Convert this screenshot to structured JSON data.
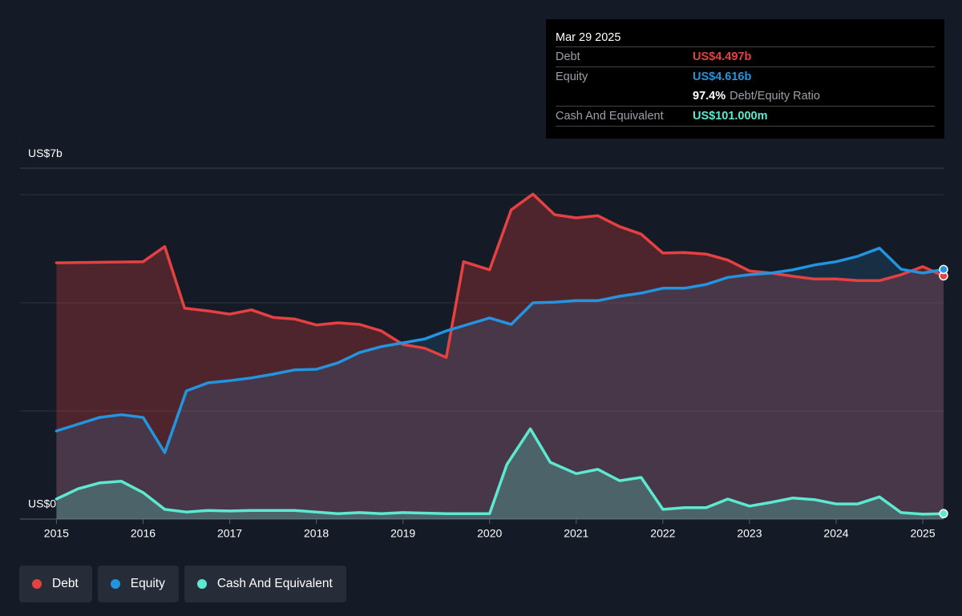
{
  "chart_data": {
    "type": "line",
    "xlim": [
      2014.58,
      2025.24
    ],
    "xticks": [
      2015,
      2016,
      2017,
      2018,
      2019,
      2020,
      2021,
      2022,
      2023,
      2024,
      2025
    ],
    "ylim": [
      0,
      7
    ],
    "yticks": [
      {
        "value": 0,
        "label": "US$0"
      },
      {
        "value": 7,
        "label": "US$7b"
      }
    ],
    "grid_lines": [
      2,
      4,
      6
    ],
    "series": [
      {
        "name": "Debt",
        "color": "#e64141",
        "x": [
          2015.0,
          2016.0,
          2016.25,
          2016.48,
          2016.75,
          2017.0,
          2017.25,
          2017.5,
          2017.75,
          2018.0,
          2018.25,
          2018.5,
          2018.75,
          2019.0,
          2019.25,
          2019.5,
          2019.7,
          2020.0,
          2020.25,
          2020.5,
          2020.75,
          2021.0,
          2021.25,
          2021.5,
          2021.75,
          2022.0,
          2022.25,
          2022.5,
          2022.75,
          2023.0,
          2023.25,
          2023.5,
          2023.75,
          2024.0,
          2024.25,
          2024.5,
          2024.75,
          2025.0,
          2025.24
        ],
        "values": [
          4.74,
          4.76,
          5.04,
          3.9,
          3.85,
          3.79,
          3.87,
          3.73,
          3.7,
          3.59,
          3.63,
          3.6,
          3.48,
          3.23,
          3.16,
          2.99,
          4.76,
          4.61,
          5.72,
          6.01,
          5.63,
          5.57,
          5.61,
          5.41,
          5.27,
          4.92,
          4.93,
          4.9,
          4.79,
          4.59,
          4.55,
          4.49,
          4.44,
          4.44,
          4.41,
          4.41,
          4.52,
          4.67,
          4.497
        ]
      },
      {
        "name": "Equity",
        "color": "#2394df",
        "x": [
          2015.0,
          2015.5,
          2015.75,
          2016.0,
          2016.25,
          2016.5,
          2016.75,
          2017.0,
          2017.25,
          2017.5,
          2017.75,
          2018.0,
          2018.25,
          2018.5,
          2018.75,
          2019.0,
          2019.25,
          2019.5,
          2019.75,
          2020.0,
          2020.25,
          2020.5,
          2020.75,
          2021.0,
          2021.25,
          2021.5,
          2021.75,
          2022.0,
          2022.25,
          2022.5,
          2022.75,
          2023.0,
          2023.25,
          2023.5,
          2023.75,
          2024.0,
          2024.25,
          2024.5,
          2024.75,
          2025.0,
          2025.24
        ],
        "values": [
          1.63,
          1.88,
          1.93,
          1.88,
          1.23,
          2.37,
          2.52,
          2.56,
          2.61,
          2.68,
          2.76,
          2.77,
          2.89,
          3.08,
          3.19,
          3.26,
          3.33,
          3.48,
          3.6,
          3.72,
          3.6,
          4.0,
          4.01,
          4.04,
          4.04,
          4.12,
          4.18,
          4.27,
          4.27,
          4.34,
          4.47,
          4.52,
          4.55,
          4.61,
          4.7,
          4.76,
          4.86,
          5.01,
          4.62,
          4.55,
          4.616
        ]
      },
      {
        "name": "Cash And Equivalent",
        "color": "#5de8d0",
        "x": [
          2015.0,
          2015.25,
          2015.5,
          2015.75,
          2016.0,
          2016.25,
          2016.5,
          2016.75,
          2017.0,
          2017.25,
          2017.5,
          2017.75,
          2018.0,
          2018.25,
          2018.5,
          2018.75,
          2019.0,
          2019.5,
          2020.0,
          2020.2,
          2020.47,
          2020.7,
          2021.0,
          2021.25,
          2021.5,
          2021.75,
          2022.0,
          2022.25,
          2022.5,
          2022.75,
          2023.0,
          2023.25,
          2023.5,
          2023.75,
          2024.0,
          2024.25,
          2024.5,
          2024.75,
          2025.0,
          2025.24
        ],
        "values": [
          0.37,
          0.56,
          0.67,
          0.7,
          0.49,
          0.18,
          0.13,
          0.16,
          0.15,
          0.16,
          0.16,
          0.16,
          0.13,
          0.1,
          0.12,
          0.1,
          0.12,
          0.1,
          0.1,
          1.01,
          1.67,
          1.05,
          0.84,
          0.92,
          0.71,
          0.77,
          0.18,
          0.21,
          0.21,
          0.37,
          0.24,
          0.31,
          0.39,
          0.36,
          0.28,
          0.28,
          0.41,
          0.12,
          0.09,
          0.101
        ]
      }
    ],
    "tooltip": {
      "date": "Mar 29 2025",
      "rows": [
        {
          "label": "Debt",
          "value": "US$4.497b"
        },
        {
          "label": "Equity",
          "value": "US$4.616b"
        },
        {
          "value": "97.4%",
          "label": "Debt/Equity Ratio"
        },
        {
          "label": "Cash And Equivalent",
          "value": "US$101.000m"
        }
      ]
    }
  }
}
